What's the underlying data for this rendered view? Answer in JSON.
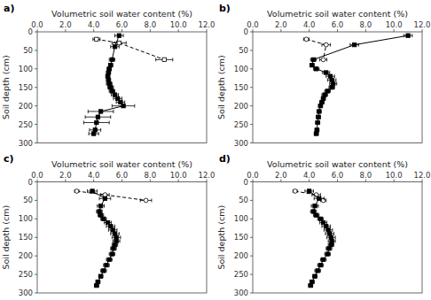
{
  "chart_data": [
    {
      "type": "line",
      "label": "a)",
      "xlabel": "Volumetric soil water content (%)",
      "ylabel": "Soil depth (cm)",
      "color": "#000000",
      "xlim": [
        0.0,
        12.0
      ],
      "xticks": [
        {
          "value": 0.0,
          "label": "0.0"
        },
        {
          "value": 2.0,
          "label": "2.0"
        },
        {
          "value": 4.0,
          "label": "4.0"
        },
        {
          "value": 6.0,
          "label": "6.0"
        },
        {
          "value": 8.0,
          "label": "8.0"
        },
        {
          "value": 10.0,
          "label": "10.0"
        },
        {
          "value": 12.0,
          "label": "12.0"
        }
      ],
      "ylim": [
        300,
        0
      ],
      "yticks": [
        0,
        50,
        100,
        150,
        200,
        250,
        300
      ],
      "series": [
        {
          "marker": "open-square",
          "line_style": "dashed",
          "depths": [
            20,
            30,
            75
          ],
          "values": [
            4.2,
            5.8,
            9.0
          ],
          "errors": [
            0.25,
            0.5,
            0.6
          ]
        },
        {
          "marker": "square",
          "line_style": "solid",
          "depths": [
            10,
            40,
            75,
            90,
            100,
            110,
            120,
            130,
            140,
            150,
            160,
            170,
            180,
            190,
            200,
            215,
            230,
            245,
            265,
            275
          ],
          "values": [
            5.8,
            5.5,
            5.3,
            5.2,
            5.1,
            5.05,
            5.0,
            5.05,
            5.1,
            5.2,
            5.3,
            5.5,
            5.7,
            5.9,
            6.1,
            4.5,
            4.3,
            4.2,
            4.1,
            4.0
          ],
          "errors": [
            0.3,
            0.3,
            0.2,
            0.15,
            0.15,
            0.15,
            0.15,
            0.15,
            0.2,
            0.2,
            0.2,
            0.25,
            0.3,
            0.3,
            0.8,
            0.9,
            0.9,
            0.9,
            0.4,
            0.35
          ]
        }
      ]
    },
    {
      "type": "line",
      "label": "b)",
      "xlabel": "Volumetric soil water content (%)",
      "ylabel": "Soil depth (cm)",
      "color": "#000000",
      "xlim": [
        0.0,
        12.0
      ],
      "xticks": [
        {
          "value": 0.0,
          "label": "0.0"
        },
        {
          "value": 2.0,
          "label": "2.0"
        },
        {
          "value": 4.0,
          "label": "4.0"
        },
        {
          "value": 6.0,
          "label": "6.0"
        },
        {
          "value": 8.0,
          "label": "8.0"
        },
        {
          "value": 10.0,
          "label": "10.0"
        },
        {
          "value": 12.0,
          "label": "12.0"
        }
      ],
      "ylim": [
        300,
        0
      ],
      "yticks": [
        0,
        50,
        100,
        150,
        200,
        250,
        300
      ],
      "series": [
        {
          "marker": "open-circle",
          "line_style": "dashed",
          "depths": [
            20,
            35,
            75
          ],
          "values": [
            3.8,
            5.2,
            5.0
          ],
          "errors": [
            0.2,
            0.3,
            0.25
          ]
        },
        {
          "marker": "square",
          "line_style": "solid",
          "depths": [
            10,
            35,
            75,
            90,
            100,
            110,
            120,
            130,
            140,
            150,
            160,
            170,
            180,
            190,
            200,
            215,
            230,
            245,
            265,
            275
          ],
          "values": [
            11.0,
            7.2,
            4.3,
            4.2,
            4.5,
            5.2,
            5.5,
            5.6,
            5.7,
            5.6,
            5.3,
            5.1,
            5.0,
            4.9,
            4.8,
            4.7,
            4.65,
            4.6,
            4.55,
            4.5
          ],
          "errors": [
            0.3,
            0.3,
            0.2,
            0.15,
            0.2,
            0.25,
            0.3,
            0.3,
            0.25,
            0.2,
            0.2,
            0.2,
            0.15,
            0.15,
            0.15,
            0.15,
            0.15,
            0.15,
            0.15,
            0.15
          ]
        }
      ]
    },
    {
      "type": "line",
      "label": "c)",
      "xlabel": "Volumetric soil water content (%)",
      "ylabel": "Soil depth (cm)",
      "color": "#000000",
      "xlim": [
        0.0,
        12.0
      ],
      "xticks": [
        {
          "value": 0.0,
          "label": "0.0"
        },
        {
          "value": 2.0,
          "label": "2.0"
        },
        {
          "value": 4.0,
          "label": "4.0"
        },
        {
          "value": 6.0,
          "label": "6.0"
        },
        {
          "value": 8.0,
          "label": "8.0"
        },
        {
          "value": 10.0,
          "label": "10.0"
        },
        {
          "value": 12.0,
          "label": "12.0"
        }
      ],
      "ylim": [
        300,
        0
      ],
      "yticks": [
        0,
        50,
        100,
        150,
        200,
        250,
        300
      ],
      "series": [
        {
          "marker": "open-circle",
          "line_style": "dashed",
          "depths": [
            25,
            35,
            50
          ],
          "values": [
            2.8,
            4.8,
            7.7
          ],
          "errors": [
            0.15,
            0.3,
            0.4
          ]
        },
        {
          "marker": "square",
          "line_style": "solid",
          "depths": [
            25,
            45,
            65,
            80,
            90,
            100,
            110,
            120,
            130,
            140,
            150,
            160,
            170,
            180,
            195,
            210,
            225,
            240,
            255,
            270,
            280
          ],
          "values": [
            3.9,
            4.8,
            4.5,
            4.4,
            4.5,
            4.7,
            5.0,
            5.2,
            5.35,
            5.5,
            5.6,
            5.6,
            5.5,
            5.4,
            5.3,
            5.1,
            4.9,
            4.7,
            4.5,
            4.3,
            4.2
          ],
          "errors": [
            0.35,
            0.4,
            0.25,
            0.2,
            0.2,
            0.2,
            0.25,
            0.3,
            0.3,
            0.3,
            0.3,
            0.25,
            0.2,
            0.2,
            0.2,
            0.2,
            0.2,
            0.2,
            0.15,
            0.15,
            0.15
          ]
        }
      ]
    },
    {
      "type": "line",
      "label": "d)",
      "xlabel": "Volumetric soil water content (%)",
      "ylabel": "Soil depth (cm)",
      "color": "#000000",
      "xlim": [
        0.0,
        12.0
      ],
      "xticks": [
        {
          "value": 0.0,
          "label": "0.0"
        },
        {
          "value": 2.0,
          "label": "2.0"
        },
        {
          "value": 4.0,
          "label": "4.0"
        },
        {
          "value": 6.0,
          "label": "6.0"
        },
        {
          "value": 8.0,
          "label": "8.0"
        },
        {
          "value": 10.0,
          "label": "10.0"
        },
        {
          "value": 12.0,
          "label": "12.0"
        }
      ],
      "ylim": [
        300,
        0
      ],
      "yticks": [
        0,
        50,
        100,
        150,
        200,
        250,
        300
      ],
      "series": [
        {
          "marker": "open-circle",
          "line_style": "dashed",
          "depths": [
            25,
            35,
            50
          ],
          "values": [
            3.0,
            4.5,
            5.0
          ],
          "errors": [
            0.15,
            0.3,
            0.2
          ]
        },
        {
          "marker": "square",
          "line_style": "solid",
          "depths": [
            25,
            45,
            65,
            80,
            90,
            100,
            110,
            120,
            130,
            140,
            150,
            160,
            170,
            180,
            195,
            210,
            225,
            240,
            255,
            270,
            280
          ],
          "values": [
            4.0,
            4.7,
            4.4,
            4.3,
            4.5,
            4.8,
            5.0,
            5.2,
            5.35,
            5.45,
            5.55,
            5.6,
            5.55,
            5.4,
            5.3,
            5.0,
            4.8,
            4.6,
            4.4,
            4.2,
            4.1
          ],
          "errors": [
            0.3,
            0.35,
            0.25,
            0.2,
            0.2,
            0.2,
            0.25,
            0.3,
            0.3,
            0.3,
            0.3,
            0.25,
            0.2,
            0.2,
            0.2,
            0.2,
            0.2,
            0.2,
            0.15,
            0.15,
            0.15
          ]
        }
      ]
    }
  ]
}
